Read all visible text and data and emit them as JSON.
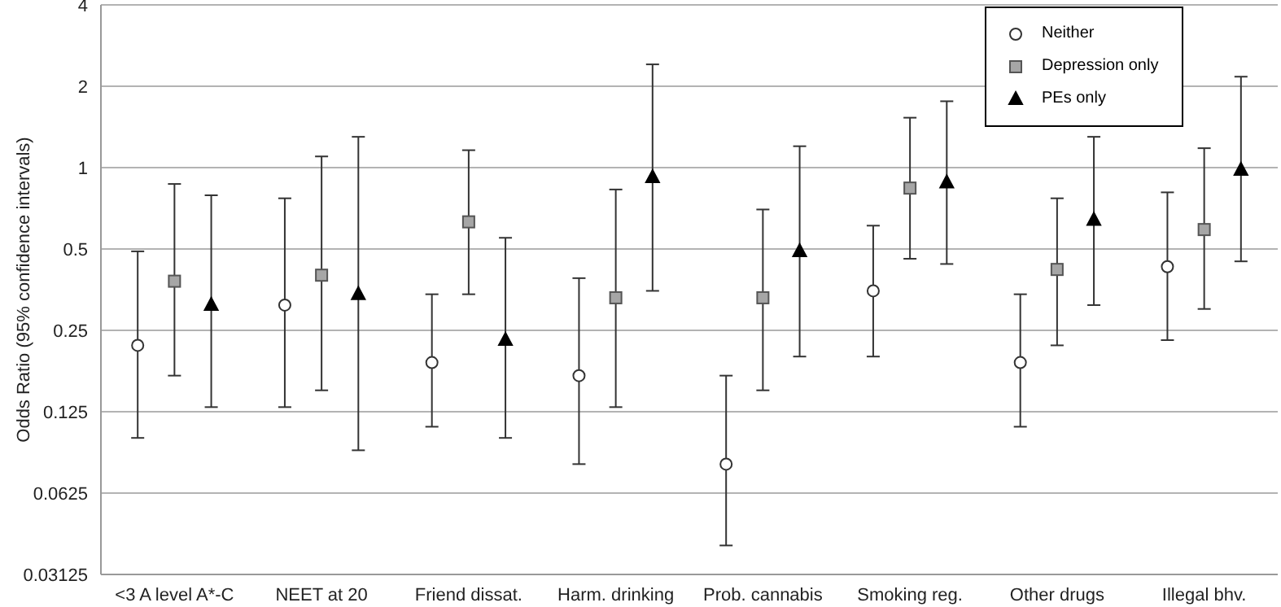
{
  "chart_data": {
    "type": "scatter",
    "ylabel": "Odds Ratio (95% confidence intervals)",
    "categories": [
      "<3 A level A*-C",
      "NEET at 20",
      "Friend dissat.",
      "Harm. drinking",
      "Prob. cannabis",
      "Smoking reg.",
      "Other drugs",
      "Illegal bhv."
    ],
    "series": [
      {
        "name": "Neither",
        "color": "#ffffff",
        "marker": "circle",
        "values": [
          0.22,
          0.31,
          0.19,
          0.17,
          0.08,
          0.35,
          0.19,
          0.43
        ],
        "errors": [
          [
            0.1,
            0.49
          ],
          [
            0.13,
            0.77
          ],
          [
            0.11,
            0.34
          ],
          [
            0.08,
            0.39
          ],
          [
            0.04,
            0.17
          ],
          [
            0.2,
            0.61
          ],
          [
            0.11,
            0.34
          ],
          [
            0.23,
            0.81
          ]
        ]
      },
      {
        "name": "Depression only",
        "color": "#a6a6a6",
        "marker": "square",
        "values": [
          0.38,
          0.4,
          0.63,
          0.33,
          0.33,
          0.84,
          0.42,
          0.59
        ],
        "errors": [
          [
            0.17,
            0.87
          ],
          [
            0.15,
            1.1
          ],
          [
            0.34,
            1.16
          ],
          [
            0.13,
            0.83
          ],
          [
            0.15,
            0.7
          ],
          [
            0.46,
            1.53
          ],
          [
            0.22,
            0.77
          ],
          [
            0.3,
            1.18
          ]
        ]
      },
      {
        "name": "PEs only",
        "color": "#000000",
        "marker": "triangle",
        "values": [
          0.31,
          0.34,
          0.23,
          0.92,
          0.49,
          0.88,
          0.64,
          0.98
        ],
        "errors": [
          [
            0.13,
            0.79
          ],
          [
            0.09,
            1.3
          ],
          [
            0.1,
            0.55
          ],
          [
            0.35,
            2.41
          ],
          [
            0.2,
            1.2
          ],
          [
            0.44,
            1.76
          ],
          [
            0.31,
            1.3
          ],
          [
            0.45,
            2.17
          ]
        ]
      }
    ],
    "ylim": [
      0.03125,
      4
    ],
    "yticks": [
      0.03125,
      0.0625,
      0.125,
      0.25,
      0.5,
      1,
      2,
      4
    ],
    "log": "y",
    "grid": "y",
    "legend": "top right"
  }
}
